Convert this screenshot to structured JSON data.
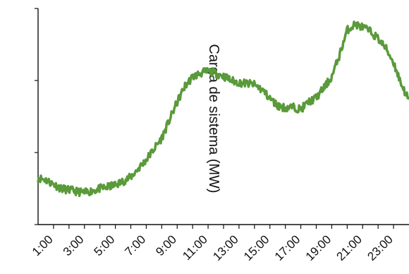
{
  "chart_data": {
    "type": "line",
    "ylabel": "Carga de sistema (MW)",
    "xlabel": "",
    "x_ticks": [
      "1:00",
      "3:00",
      "5:00",
      "7:00",
      "9:00",
      "11:00",
      "13:00",
      "15:00",
      "17:00",
      "19:00",
      "21:00",
      "23:00"
    ],
    "x_range": [
      "0:00",
      "24:00"
    ],
    "y_range": [
      0,
      3
    ],
    "y_ticks": [
      0,
      1,
      2,
      3
    ],
    "y_tick_labels_shown": false,
    "grid": false,
    "legend": "none",
    "series": [
      {
        "color": "#5a9a3a",
        "x": [
          "0:00",
          "0:30",
          "1:00",
          "1:30",
          "2:00",
          "2:30",
          "3:00",
          "3:30",
          "4:00",
          "4:30",
          "5:00",
          "5:30",
          "6:00",
          "6:30",
          "7:00",
          "7:30",
          "8:00",
          "8:30",
          "9:00",
          "9:30",
          "10:00",
          "10:30",
          "11:00",
          "11:30",
          "12:00",
          "12:30",
          "13:00",
          "13:30",
          "14:00",
          "14:30",
          "15:00",
          "15:30",
          "16:00",
          "16:30",
          "17:00",
          "17:30",
          "18:00",
          "18:30",
          "19:00",
          "19:30",
          "20:00",
          "20:30",
          "21:00",
          "21:30",
          "22:00",
          "22:30",
          "23:00",
          "23:30",
          "24:00"
        ],
        "values": [
          0.65,
          0.62,
          0.56,
          0.5,
          0.48,
          0.46,
          0.44,
          0.47,
          0.5,
          0.52,
          0.55,
          0.6,
          0.66,
          0.78,
          0.9,
          1.05,
          1.2,
          1.45,
          1.7,
          1.92,
          2.05,
          2.1,
          2.13,
          2.1,
          2.06,
          2.0,
          1.97,
          1.96,
          1.94,
          1.87,
          1.75,
          1.65,
          1.62,
          1.63,
          1.6,
          1.7,
          1.76,
          1.9,
          2.05,
          2.35,
          2.7,
          2.78,
          2.74,
          2.68,
          2.58,
          2.45,
          2.25,
          1.95,
          1.72
        ]
      }
    ]
  }
}
